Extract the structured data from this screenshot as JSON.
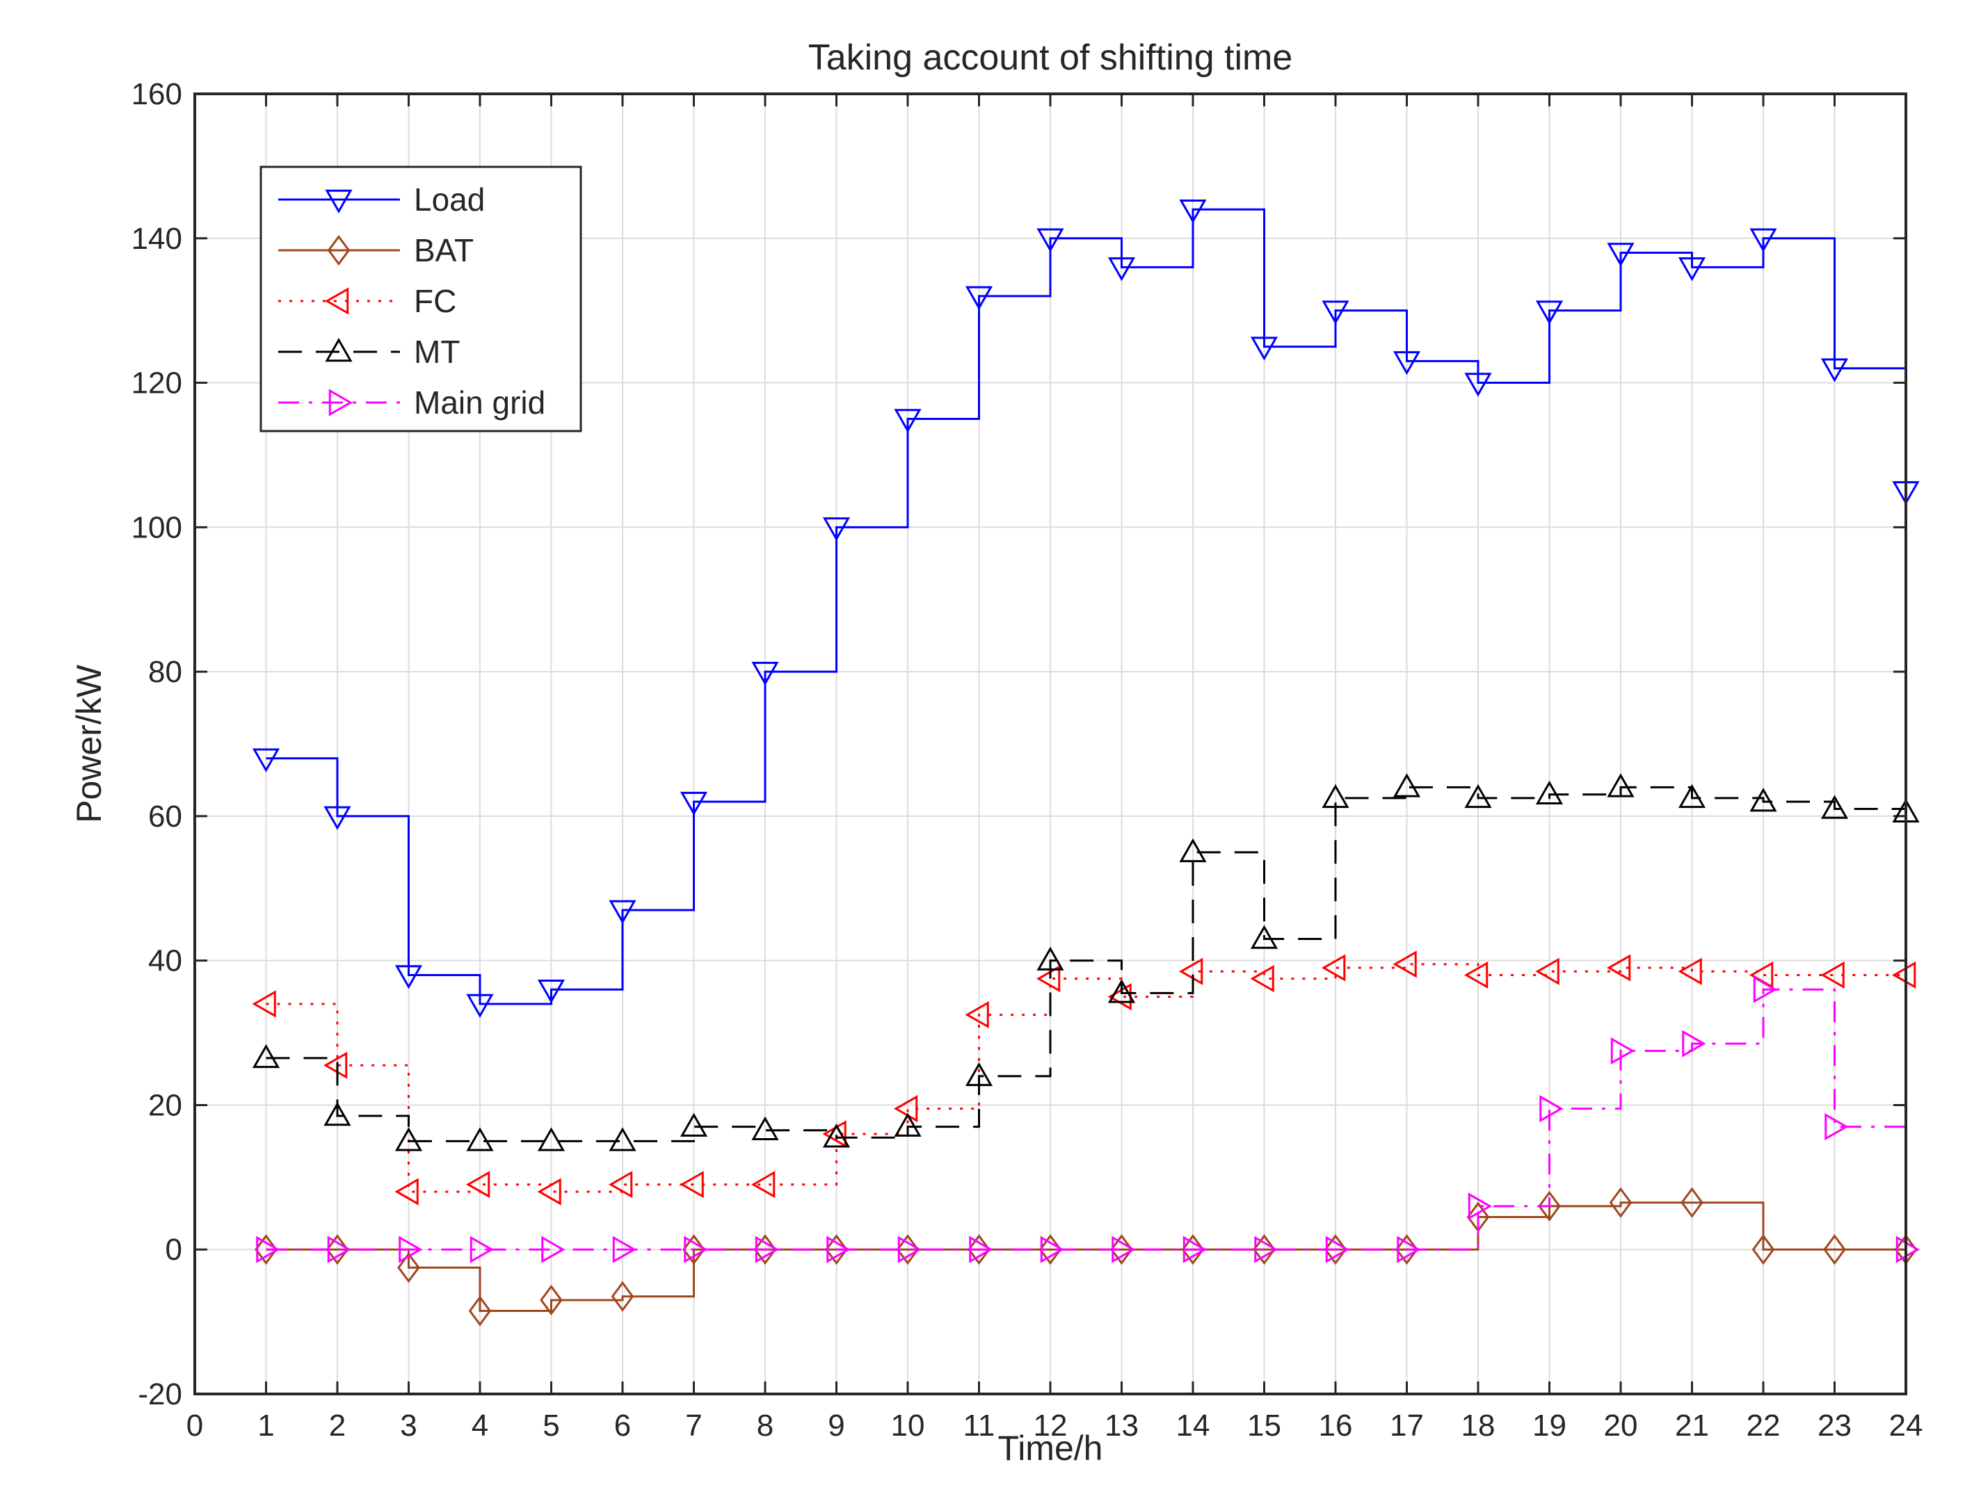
{
  "chart_data": {
    "type": "line",
    "step": true,
    "title": "Taking account of shifting time",
    "xlabel": "Time/h",
    "ylabel": "Power/kW",
    "xlim": [
      0,
      24
    ],
    "ylim": [
      -20,
      160
    ],
    "xticks": [
      0,
      1,
      2,
      3,
      4,
      5,
      6,
      7,
      8,
      9,
      10,
      11,
      12,
      13,
      14,
      15,
      16,
      17,
      18,
      19,
      20,
      21,
      22,
      23,
      24
    ],
    "yticks": [
      -20,
      0,
      20,
      40,
      60,
      80,
      100,
      120,
      140,
      160
    ],
    "grid": true,
    "legend_position": "top-left",
    "x": [
      1,
      2,
      3,
      4,
      5,
      6,
      7,
      8,
      9,
      10,
      11,
      12,
      13,
      14,
      15,
      16,
      17,
      18,
      19,
      20,
      21,
      22,
      23,
      24
    ],
    "series": [
      {
        "name": "Load",
        "color": "#0000ff",
        "line": "solid",
        "marker": "triangle-down",
        "values": [
          68,
          60,
          38,
          34,
          36,
          47,
          62,
          80,
          100,
          115,
          132,
          140,
          136,
          144,
          125,
          130,
          123,
          120,
          130,
          138,
          136,
          140,
          122,
          105
        ]
      },
      {
        "name": "BAT",
        "color": "#a0461e",
        "line": "solid",
        "marker": "diamond",
        "values": [
          0,
          0,
          -2.5,
          -8.5,
          -7,
          -6.5,
          0,
          0,
          0,
          0,
          0,
          0,
          0,
          0,
          0,
          0,
          0,
          4.5,
          6,
          6.5,
          6.5,
          0,
          0,
          0
        ]
      },
      {
        "name": "FC",
        "color": "#ff0000",
        "line": "dotted",
        "marker": "triangle-left",
        "values": [
          34,
          25.5,
          8,
          9,
          8,
          9,
          9,
          9,
          16,
          19.5,
          32.5,
          37.5,
          35,
          38.5,
          37.5,
          39,
          39.5,
          38,
          38.5,
          39,
          38.5,
          38,
          38,
          38
        ]
      },
      {
        "name": "MT",
        "color": "#000000",
        "line": "dashed",
        "marker": "triangle-up",
        "values": [
          26.5,
          18.5,
          15,
          15,
          15,
          15,
          17,
          16.5,
          15.5,
          17,
          24,
          40,
          35.5,
          55,
          43,
          62.5,
          64,
          62.5,
          63,
          64,
          62.5,
          62,
          61,
          60.5
        ]
      },
      {
        "name": "Main grid",
        "color": "#ff00ff",
        "line": "dashdot",
        "marker": "triangle-right",
        "values": [
          0,
          0,
          0,
          0,
          0,
          0,
          0,
          0,
          0,
          0,
          0,
          0,
          0,
          0,
          0,
          0,
          0,
          6,
          19.5,
          27.5,
          28.5,
          36,
          17,
          0
        ]
      }
    ]
  }
}
